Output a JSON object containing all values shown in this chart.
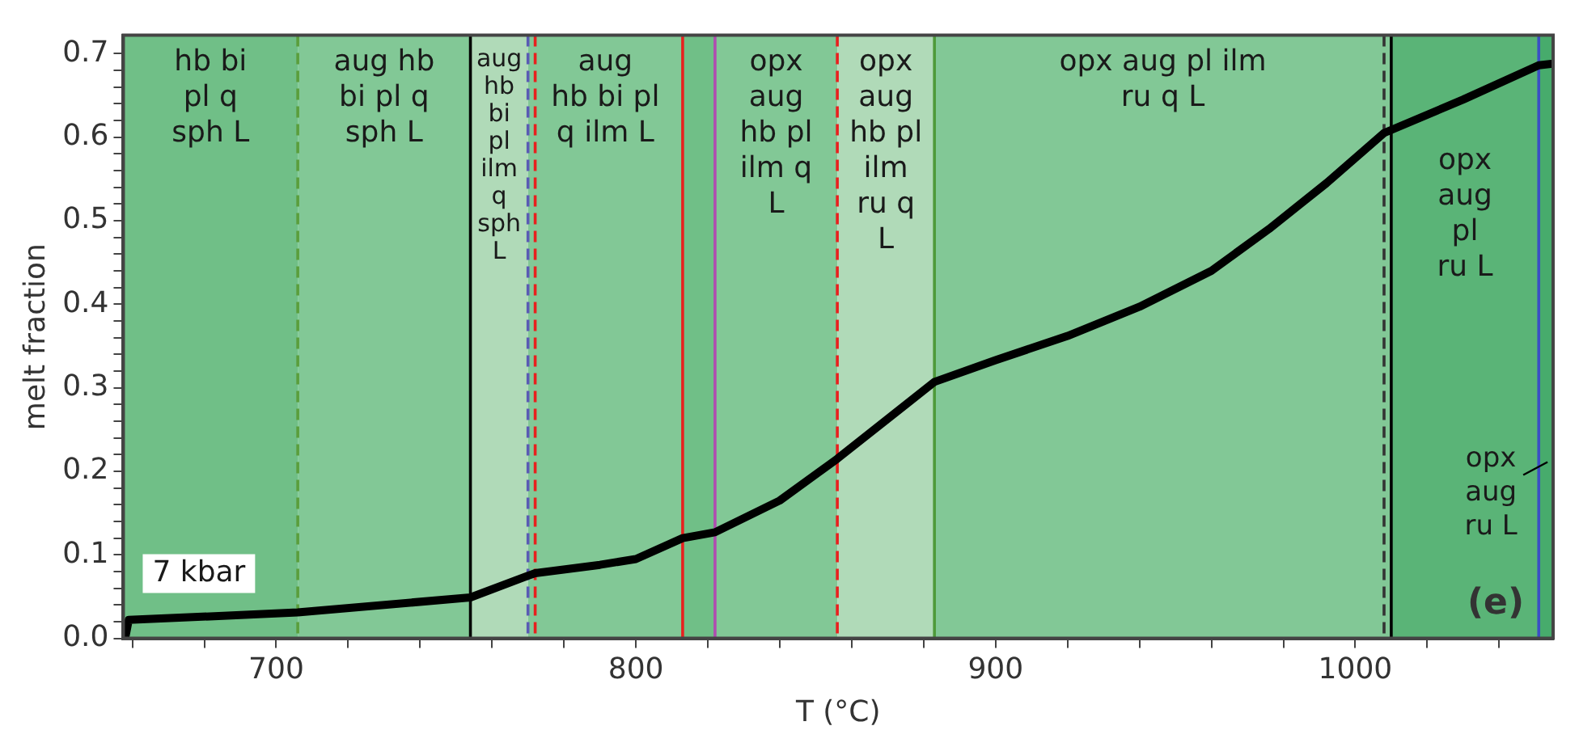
{
  "chart_data": {
    "type": "line",
    "xlabel": "T (°C)",
    "ylabel": "melt fraction",
    "xlim": [
      657.5,
      1055
    ],
    "ylim": [
      0,
      0.722
    ],
    "xticks": [
      {
        "value": 660,
        "label": null
      },
      {
        "value": 680,
        "label": null
      },
      700,
      {
        "value": 720,
        "label": null
      },
      {
        "value": 740,
        "label": null
      },
      {
        "value": 760,
        "label": null
      },
      {
        "value": 780,
        "label": null
      },
      800,
      {
        "value": 820,
        "label": null
      },
      {
        "value": 840,
        "label": null
      },
      {
        "value": 860,
        "label": null
      },
      {
        "value": 880,
        "label": null
      },
      900,
      {
        "value": 920,
        "label": null
      },
      {
        "value": 940,
        "label": null
      },
      {
        "value": 960,
        "label": null
      },
      {
        "value": 980,
        "label": null
      },
      1000,
      {
        "value": 1020,
        "label": null
      },
      {
        "value": 1040,
        "label": null
      }
    ],
    "yticks": [
      {
        "value": 0,
        "label": "0.0"
      },
      {
        "value": 0.02,
        "label": null
      },
      {
        "value": 0.04,
        "label": null
      },
      {
        "value": 0.06,
        "label": null
      },
      {
        "value": 0.08,
        "label": null
      },
      0.1,
      {
        "value": 0.12,
        "label": null
      },
      {
        "value": 0.14,
        "label": null
      },
      {
        "value": 0.16,
        "label": null
      },
      {
        "value": 0.18,
        "label": null
      },
      0.2,
      {
        "value": 0.22,
        "label": null
      },
      {
        "value": 0.24,
        "label": null
      },
      {
        "value": 0.26,
        "label": null
      },
      {
        "value": 0.28,
        "label": null
      },
      0.3,
      {
        "value": 0.32,
        "label": null
      },
      {
        "value": 0.34,
        "label": null
      },
      {
        "value": 0.36,
        "label": null
      },
      {
        "value": 0.38,
        "label": null
      },
      0.4,
      {
        "value": 0.42,
        "label": null
      },
      {
        "value": 0.44,
        "label": null
      },
      {
        "value": 0.46,
        "label": null
      },
      {
        "value": 0.48,
        "label": null
      },
      0.5,
      {
        "value": 0.52,
        "label": null
      },
      {
        "value": 0.54,
        "label": null
      },
      {
        "value": 0.56,
        "label": null
      },
      {
        "value": 0.58,
        "label": null
      },
      0.6,
      {
        "value": 0.62,
        "label": null
      },
      {
        "value": 0.64,
        "label": null
      },
      {
        "value": 0.66,
        "label": null
      },
      {
        "value": 0.68,
        "label": null
      },
      0.7
    ],
    "grid": false,
    "legend": false,
    "marker": "none",
    "line_style": "solid",
    "series": [
      {
        "color": "#000000",
        "x": [
          658,
          659,
          706,
          754,
          770,
          772,
          790,
          800,
          813,
          822,
          840,
          856,
          883,
          900,
          920,
          940,
          960,
          976,
          992,
          1008,
          1030,
          1051,
          1055
        ],
        "values": [
          0,
          0.022,
          0.031,
          0.049,
          0.075,
          0.078,
          0.088,
          0.095,
          0.12,
          0.127,
          0.165,
          0.215,
          0.307,
          0.333,
          0.362,
          0.397,
          0.44,
          0.49,
          0.545,
          0.605,
          0.645,
          0.686,
          0.688
        ]
      }
    ],
    "bands": [
      {
        "axis": "x",
        "from": 657.5,
        "to": 706,
        "label": "hb bi\npl q\nsph L",
        "color": "#70bf87"
      },
      {
        "axis": "x",
        "from": 706,
        "to": 754,
        "label": "aug hb\nbi pl q\nsph L",
        "color": "#82c896"
      },
      {
        "axis": "x",
        "from": 754,
        "to": 770,
        "label": "aug\nhb\nbi\npl\nilm\nq\nsph\nL",
        "color": "#b0dab8"
      },
      {
        "axis": "x",
        "from": 770,
        "to": 813,
        "label": "aug\nhb bi pl\nq ilm L",
        "color": "#82c896"
      },
      {
        "axis": "x",
        "from": 813,
        "to": 822,
        "color": "#70bf87"
      },
      {
        "axis": "x",
        "from": 822,
        "to": 856,
        "label": "opx\naug\nhb pl\nilm q\nL",
        "color": "#82c896"
      },
      {
        "axis": "x",
        "from": 856,
        "to": 883,
        "label": "opx\naug\nhb pl\nilm\nru q\nL",
        "color": "#b0dab8"
      },
      {
        "axis": "x",
        "from": 883,
        "to": 1010,
        "label": "opx aug pl ilm\nru q L",
        "color": "#82c896"
      },
      {
        "axis": "x",
        "from": 1010,
        "to": 1051,
        "label": "opx\naug\npl\nru L",
        "color": "#5ab477"
      },
      {
        "axis": "x",
        "from": 1051,
        "to": 1055,
        "color": "#47ab6c"
      }
    ],
    "ref_lines": [
      {
        "axis": "x",
        "value": 706,
        "color": "#5a9e3c",
        "line_style": "dashed"
      },
      {
        "axis": "x",
        "value": 754,
        "color": "#000000",
        "line_style": "solid"
      },
      {
        "axis": "x",
        "value": 770,
        "color": "#5a5ab4",
        "line_style": "dashed"
      },
      {
        "axis": "x",
        "value": 772,
        "color": "#e8201e",
        "line_style": "dashed"
      },
      {
        "axis": "x",
        "value": 813,
        "color": "#e8201e",
        "line_style": "solid"
      },
      {
        "axis": "x",
        "value": 822,
        "color": "#b04cb0",
        "line_style": "solid"
      },
      {
        "axis": "x",
        "value": 856,
        "color": "#e8201e",
        "line_style": "dashed"
      },
      {
        "axis": "x",
        "value": 883,
        "color": "#4e9a3a",
        "line_style": "solid"
      },
      {
        "axis": "x",
        "value": 1008,
        "color": "#333333",
        "line_style": "dashed"
      },
      {
        "axis": "x",
        "value": 1010,
        "color": "#000000",
        "line_style": "solid"
      },
      {
        "axis": "x",
        "value": 1051,
        "color": "#3b4fc4",
        "line_style": "solid"
      }
    ],
    "annotations": [
      "7 kbar",
      "(e)",
      {
        "text": "opx\naug\nru L",
        "x": 1053,
        "y": 0.215
      }
    ]
  }
}
